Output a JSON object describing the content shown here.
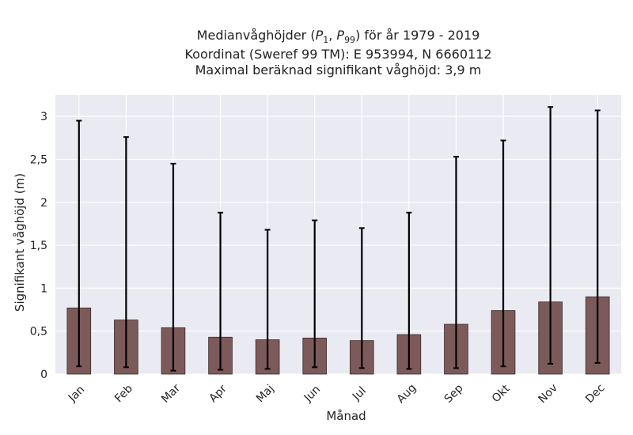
{
  "chart_data": {
    "type": "bar",
    "title_lines": [
      "Medianvåghöjder (P1, P99) för år 1979 - 2019",
      "Koordinat (Sweref 99 TM): E 953994, N 6660112",
      "Maximal beräknad signifikant våghöjd: 3,9 m"
    ],
    "xlabel": "Månad",
    "ylabel": "Signifikant våghöjd (m)",
    "categories": [
      "Jan",
      "Feb",
      "Mar",
      "Apr",
      "Maj",
      "Jun",
      "Jul",
      "Aug",
      "Sep",
      "Okt",
      "Nov",
      "Dec"
    ],
    "median": [
      0.77,
      0.63,
      0.54,
      0.43,
      0.4,
      0.42,
      0.39,
      0.46,
      0.58,
      0.74,
      0.84,
      0.9
    ],
    "p1": [
      0.09,
      0.08,
      0.04,
      0.05,
      0.06,
      0.08,
      0.07,
      0.06,
      0.07,
      0.09,
      0.12,
      0.13
    ],
    "p99": [
      2.95,
      2.76,
      2.45,
      1.88,
      1.68,
      1.79,
      1.7,
      1.88,
      2.53,
      2.72,
      3.11,
      3.07
    ],
    "ylim": [
      0,
      3.25
    ],
    "yticks": [
      0,
      0.5,
      1,
      1.5,
      2,
      2.5,
      3
    ],
    "ytick_labels": [
      "0",
      "0,5",
      "1",
      "1,5",
      "2",
      "2,5",
      "3"
    ],
    "grid": true,
    "colors": {
      "bar": "#7d5a5a",
      "bar_edge": "#3a2a2a",
      "plot_bg": "#eaeaf2",
      "grid": "#ffffff",
      "errorbar": "#000000"
    }
  }
}
